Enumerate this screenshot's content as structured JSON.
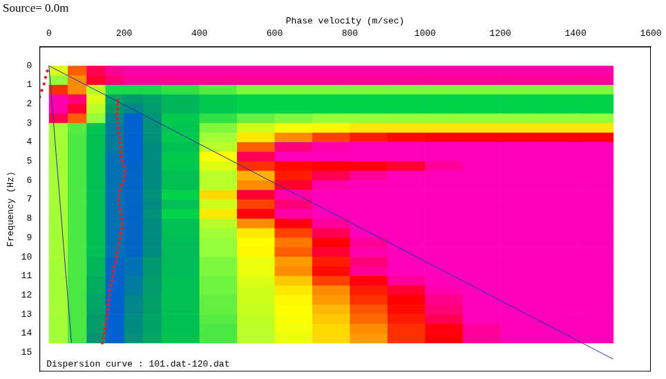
{
  "chart_data": {
    "type": "heatmap",
    "title": "Source= 0.0m",
    "x_label": "Phase velocity (m/sec)",
    "y_label": "Frequency (Hz)",
    "annotation": "Dispersion curve : 101.dat-120.dat",
    "xlim": [
      -25,
      1600
    ],
    "xticks": [
      0,
      200,
      400,
      600,
      800,
      1000,
      1200,
      1400,
      1600
    ],
    "ylim": [
      16,
      -1
    ],
    "yticks": [
      0,
      1,
      2,
      3,
      4,
      5,
      6,
      7,
      8,
      9,
      10,
      11,
      12,
      13,
      14,
      15
    ],
    "grid": false,
    "cells": {
      "x_edges": [
        0,
        50,
        100,
        150,
        200,
        250,
        300,
        400,
        500,
        600,
        700,
        800,
        900,
        1000,
        1100,
        1200,
        1300,
        1400,
        1500
      ],
      "y_edges": [
        0,
        0.5,
        1,
        1.5,
        2,
        2.5,
        3,
        3.5,
        4,
        4.5,
        5,
        5.5,
        6,
        6.5,
        7,
        7.5,
        8,
        8.5,
        9,
        9.5,
        10,
        10.5,
        11,
        11.5,
        12,
        12.5,
        13,
        13.5,
        14,
        14.5
      ],
      "z": [
        [
          0.5,
          0.25,
          0.1,
          0.06,
          0.05,
          0.05,
          0.05,
          0.05,
          0.05,
          0.05,
          0.05,
          0.05,
          0.05,
          0.05,
          0.05,
          0.05,
          0.05,
          0.05
        ],
        [
          0.6,
          0.3,
          0.12,
          0.08,
          0.06,
          0.06,
          0.06,
          0.06,
          0.06,
          0.06,
          0.06,
          0.06,
          0.06,
          0.06,
          0.06,
          0.06,
          0.06,
          0.06
        ],
        [
          0.2,
          0.3,
          0.55,
          0.7,
          0.7,
          0.7,
          0.68,
          0.65,
          0.62,
          0.62,
          0.62,
          0.62,
          0.62,
          0.62,
          0.62,
          0.62,
          0.62,
          0.62
        ],
        [
          0.05,
          0.08,
          0.5,
          0.82,
          0.85,
          0.82,
          0.78,
          0.74,
          0.72,
          0.72,
          0.72,
          0.72,
          0.72,
          0.72,
          0.72,
          0.72,
          0.72,
          0.72
        ],
        [
          0.05,
          0.12,
          0.55,
          0.85,
          0.88,
          0.84,
          0.78,
          0.74,
          0.72,
          0.72,
          0.72,
          0.72,
          0.72,
          0.72,
          0.72,
          0.72,
          0.72,
          0.72
        ],
        [
          0.1,
          0.25,
          0.6,
          0.88,
          0.95,
          0.86,
          0.74,
          0.68,
          0.64,
          0.62,
          0.6,
          0.6,
          0.6,
          0.6,
          0.6,
          0.6,
          0.6,
          0.6
        ],
        [
          0.58,
          0.65,
          0.75,
          0.9,
          0.95,
          0.86,
          0.75,
          0.62,
          0.52,
          0.46,
          0.44,
          0.42,
          0.42,
          0.42,
          0.42,
          0.42,
          0.42,
          0.42
        ],
        [
          0.58,
          0.66,
          0.76,
          0.9,
          0.95,
          0.86,
          0.74,
          0.58,
          0.42,
          0.3,
          0.22,
          0.18,
          0.16,
          0.15,
          0.15,
          0.15,
          0.15,
          0.15
        ],
        [
          0.58,
          0.66,
          0.76,
          0.9,
          0.95,
          0.87,
          0.76,
          0.55,
          0.25,
          0.08,
          0.05,
          0.04,
          0.04,
          0.04,
          0.04,
          0.04,
          0.04,
          0.04
        ],
        [
          0.58,
          0.66,
          0.76,
          0.92,
          0.95,
          0.87,
          0.74,
          0.45,
          0.1,
          0.04,
          0.04,
          0.04,
          0.04,
          0.04,
          0.04,
          0.04,
          0.04,
          0.04
        ],
        [
          0.58,
          0.66,
          0.76,
          0.92,
          0.94,
          0.87,
          0.74,
          0.5,
          0.2,
          0.16,
          0.15,
          0.14,
          0.12,
          0.06,
          0.04,
          0.04,
          0.04,
          0.04
        ],
        [
          0.58,
          0.66,
          0.76,
          0.92,
          0.94,
          0.87,
          0.76,
          0.55,
          0.35,
          0.18,
          0.1,
          0.06,
          0.04,
          0.04,
          0.04,
          0.04,
          0.04,
          0.04
        ],
        [
          0.58,
          0.66,
          0.76,
          0.92,
          0.94,
          0.87,
          0.76,
          0.55,
          0.3,
          0.12,
          0.05,
          0.04,
          0.04,
          0.04,
          0.04,
          0.04,
          0.04,
          0.04
        ],
        [
          0.58,
          0.66,
          0.76,
          0.92,
          0.94,
          0.86,
          0.72,
          0.4,
          0.12,
          0.05,
          0.04,
          0.04,
          0.04,
          0.04,
          0.04,
          0.04,
          0.04,
          0.04
        ],
        [
          0.58,
          0.66,
          0.76,
          0.92,
          0.94,
          0.87,
          0.76,
          0.52,
          0.22,
          0.08,
          0.04,
          0.04,
          0.04,
          0.04,
          0.04,
          0.04,
          0.04,
          0.04
        ],
        [
          0.58,
          0.66,
          0.76,
          0.92,
          0.94,
          0.86,
          0.72,
          0.42,
          0.14,
          0.05,
          0.04,
          0.04,
          0.04,
          0.04,
          0.04,
          0.04,
          0.04,
          0.04
        ],
        [
          0.58,
          0.66,
          0.76,
          0.92,
          0.94,
          0.87,
          0.76,
          0.55,
          0.3,
          0.14,
          0.06,
          0.04,
          0.04,
          0.04,
          0.04,
          0.04,
          0.04,
          0.04
        ],
        [
          0.58,
          0.66,
          0.76,
          0.92,
          0.94,
          0.87,
          0.76,
          0.58,
          0.42,
          0.22,
          0.1,
          0.04,
          0.04,
          0.04,
          0.04,
          0.04,
          0.04,
          0.04
        ],
        [
          0.58,
          0.66,
          0.76,
          0.92,
          0.94,
          0.87,
          0.77,
          0.6,
          0.45,
          0.28,
          0.15,
          0.06,
          0.04,
          0.04,
          0.04,
          0.04,
          0.04,
          0.04
        ],
        [
          0.58,
          0.66,
          0.76,
          0.92,
          0.94,
          0.87,
          0.77,
          0.6,
          0.44,
          0.25,
          0.12,
          0.05,
          0.04,
          0.04,
          0.04,
          0.04,
          0.04,
          0.04
        ],
        [
          0.58,
          0.66,
          0.78,
          0.94,
          0.92,
          0.85,
          0.77,
          0.62,
          0.48,
          0.32,
          0.18,
          0.08,
          0.04,
          0.04,
          0.04,
          0.04,
          0.04,
          0.04
        ],
        [
          0.58,
          0.66,
          0.78,
          0.94,
          0.92,
          0.85,
          0.77,
          0.62,
          0.48,
          0.3,
          0.16,
          0.06,
          0.04,
          0.04,
          0.04,
          0.04,
          0.04,
          0.04
        ],
        [
          0.58,
          0.66,
          0.8,
          0.95,
          0.9,
          0.84,
          0.76,
          0.63,
          0.5,
          0.38,
          0.22,
          0.14,
          0.06,
          0.04,
          0.04,
          0.04,
          0.04,
          0.04
        ],
        [
          0.58,
          0.66,
          0.8,
          0.95,
          0.9,
          0.84,
          0.76,
          0.63,
          0.52,
          0.42,
          0.3,
          0.18,
          0.12,
          0.05,
          0.04,
          0.04,
          0.04,
          0.04
        ],
        [
          0.58,
          0.66,
          0.82,
          0.95,
          0.88,
          0.83,
          0.76,
          0.64,
          0.52,
          0.44,
          0.32,
          0.2,
          0.15,
          0.07,
          0.04,
          0.04,
          0.04,
          0.04
        ],
        [
          0.58,
          0.66,
          0.82,
          0.95,
          0.88,
          0.83,
          0.76,
          0.64,
          0.53,
          0.45,
          0.36,
          0.24,
          0.16,
          0.08,
          0.04,
          0.04,
          0.04,
          0.04
        ],
        [
          0.58,
          0.66,
          0.84,
          0.95,
          0.87,
          0.82,
          0.76,
          0.65,
          0.54,
          0.46,
          0.38,
          0.26,
          0.18,
          0.1,
          0.04,
          0.04,
          0.04,
          0.04
        ],
        [
          0.58,
          0.66,
          0.84,
          0.95,
          0.87,
          0.82,
          0.76,
          0.66,
          0.55,
          0.47,
          0.4,
          0.3,
          0.2,
          0.14,
          0.06,
          0.04,
          0.04,
          0.04
        ],
        [
          0.58,
          0.66,
          0.85,
          0.95,
          0.86,
          0.81,
          0.75,
          0.66,
          0.55,
          0.48,
          0.4,
          0.32,
          0.2,
          0.15,
          0.06,
          0.04,
          0.04,
          0.04
        ]
      ]
    },
    "zlim": [
      0,
      1
    ],
    "series": [
      {
        "type": "scatter",
        "marker": "dot",
        "color": "#e8202a",
        "x": [
          -4,
          -9,
          -13,
          -19,
          -25,
          183,
          183,
          182,
          181,
          182,
          183,
          184,
          186,
          188,
          189,
          190,
          192,
          193,
          195,
          199,
          202,
          201,
          198,
          193,
          189,
          186,
          185,
          187,
          189,
          192,
          194,
          195,
          194,
          191,
          189,
          187,
          184,
          181,
          179,
          177,
          174,
          172,
          170,
          167,
          165,
          162,
          160,
          159,
          157,
          156,
          155,
          153,
          151,
          149,
          147,
          145,
          142
        ],
        "y": [
          0.27,
          0.61,
          0.95,
          1.29,
          1.63,
          1.8,
          2.0,
          2.25,
          2.5,
          2.75,
          3.0,
          3.25,
          3.5,
          3.75,
          4.0,
          4.25,
          4.5,
          4.75,
          5.0,
          5.25,
          5.5,
          5.75,
          6.0,
          6.25,
          6.5,
          6.75,
          7.0,
          7.25,
          7.5,
          7.75,
          8.0,
          8.25,
          8.5,
          8.75,
          9.0,
          9.25,
          9.5,
          9.75,
          10.0,
          10.25,
          10.5,
          10.75,
          11.0,
          11.25,
          11.5,
          11.75,
          12.0,
          12.25,
          12.5,
          12.75,
          13.0,
          13.25,
          13.5,
          13.75,
          14.0,
          14.25,
          14.5
        ]
      },
      {
        "type": "line",
        "line_style": "solid",
        "color": "#2a2aa8",
        "x": [
          0,
          1500
        ],
        "y": [
          0,
          15.35
        ]
      },
      {
        "type": "line",
        "line_style": "solid",
        "color": "#2a2aa8",
        "x": [
          0,
          60
        ],
        "y": [
          0,
          14.5
        ]
      }
    ]
  }
}
